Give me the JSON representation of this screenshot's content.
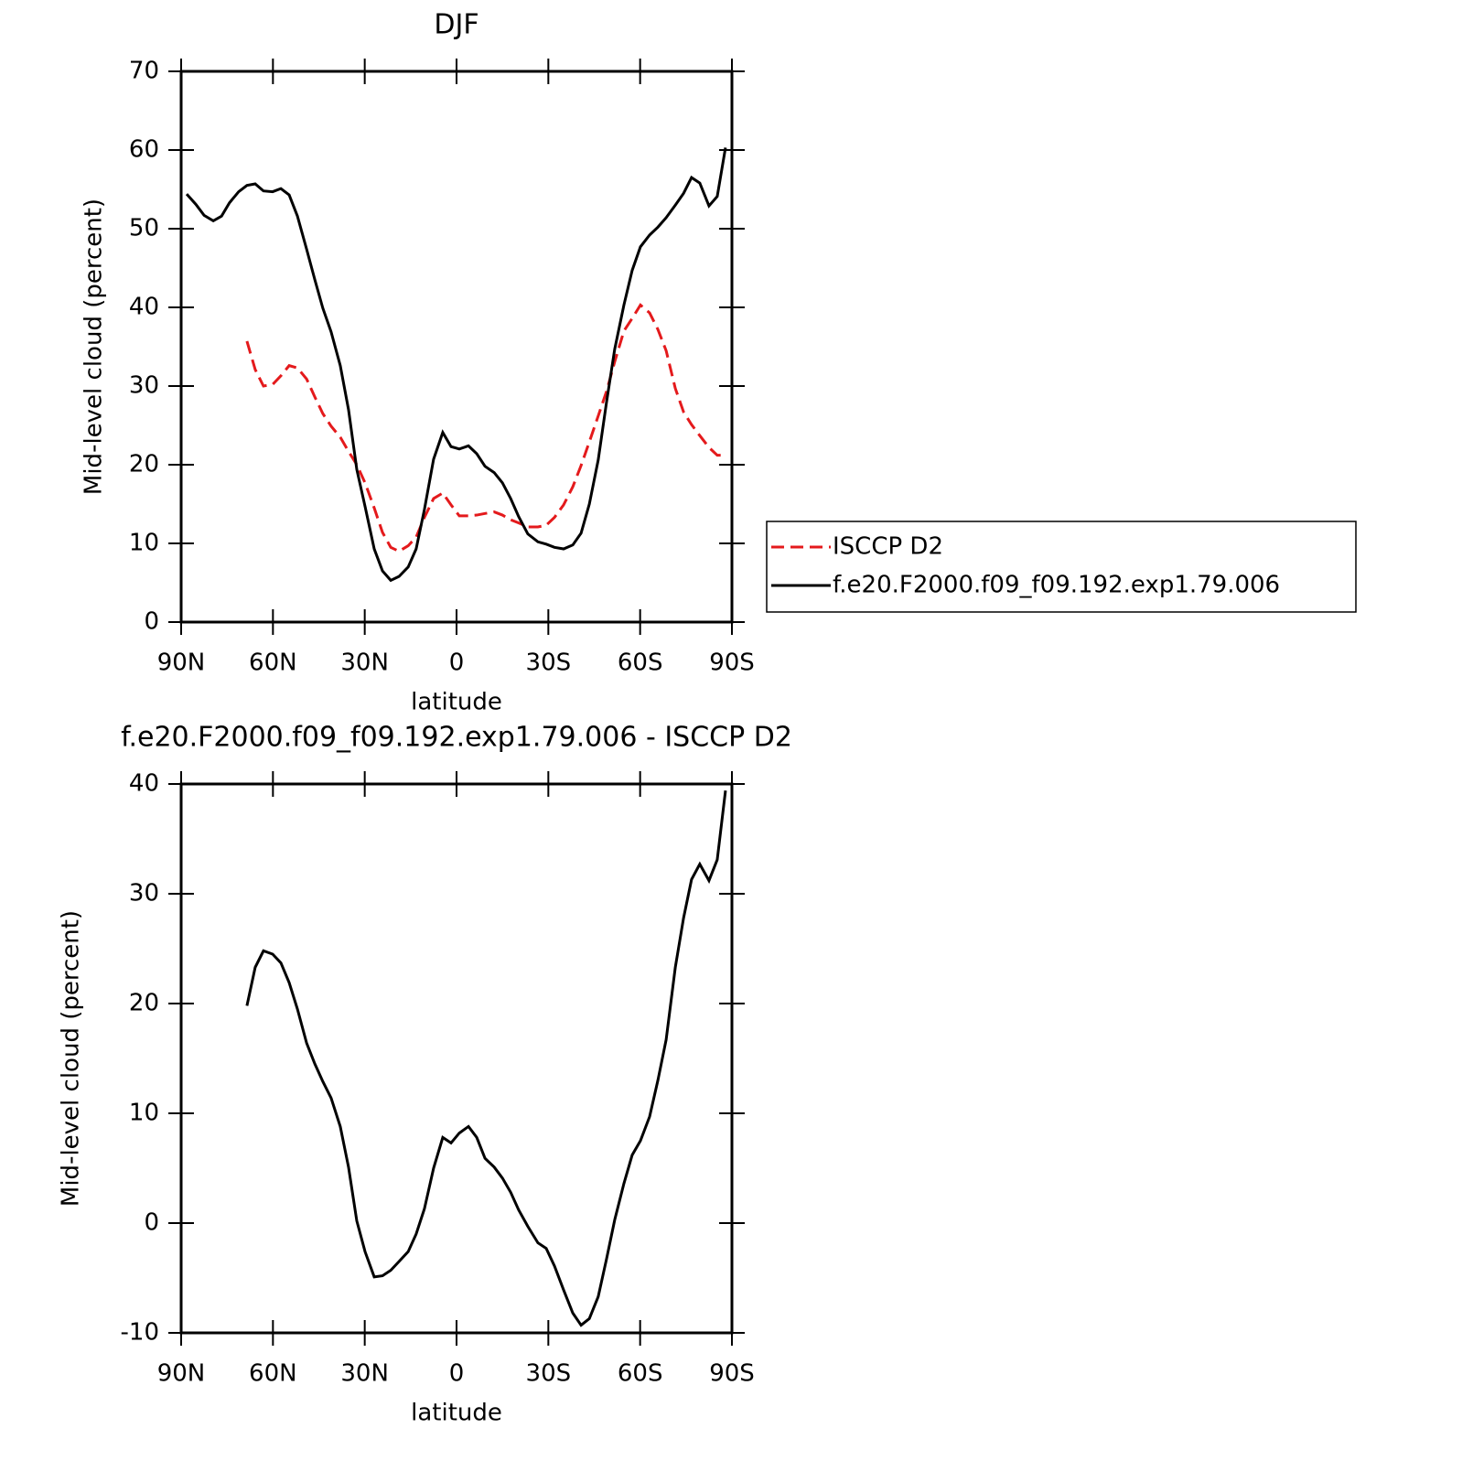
{
  "chart_data": [
    {
      "type": "line",
      "title": "DJF",
      "xlabel": "latitude",
      "ylabel": "Mid-level cloud (percent)",
      "x": [
        88.2,
        85.2,
        82.5,
        79.5,
        76.8,
        74.2,
        71.2,
        68.5,
        65.8,
        63.1,
        60.1,
        57.4,
        54.7,
        52.0,
        49.0,
        46.3,
        43.7,
        41.0,
        38.0,
        35.3,
        32.6,
        29.9,
        26.9,
        24.2,
        21.5,
        18.8,
        15.8,
        13.2,
        10.5,
        7.5,
        4.5,
        1.8,
        -0.9,
        -3.9,
        -6.6,
        -9.3,
        -12.3,
        -15.0,
        -17.7,
        -20.3,
        -23.3,
        -26.6,
        -29.3,
        -32.0,
        -35.0,
        -38.0,
        -40.7,
        -43.4,
        -46.3,
        -49.0,
        -51.7,
        -54.7,
        -57.4,
        -60.1,
        -63.1,
        -65.8,
        -68.5,
        -71.5,
        -74.2,
        -76.8,
        -79.5,
        -82.5,
        -85.2,
        -87.9
      ],
      "series": [
        {
          "name": "ISCCP D2",
          "color": "#e41a1c",
          "linestyle": "dashed",
          "values": [
            null,
            null,
            null,
            null,
            null,
            null,
            null,
            35.7,
            32.1,
            30.0,
            30.2,
            31.3,
            32.6,
            32.3,
            30.9,
            28.6,
            26.5,
            24.9,
            23.5,
            21.7,
            20.0,
            17.7,
            14.5,
            11.4,
            9.5,
            9.0,
            9.7,
            10.8,
            13.3,
            15.7,
            16.4,
            14.9,
            13.5,
            13.5,
            13.6,
            13.8,
            14.0,
            13.6,
            13.0,
            12.6,
            12.1,
            12.1,
            12.3,
            13.3,
            14.9,
            17.2,
            19.9,
            22.9,
            26.2,
            29.3,
            33.1,
            37.0,
            38.6,
            40.3,
            39.3,
            37.2,
            34.5,
            29.7,
            26.7,
            25.1,
            23.7,
            22.2,
            21.2,
            21.2
          ]
        },
        {
          "name": "f.e20.F2000.f09_f09.192.exp1.79.006",
          "color": "#000000",
          "linestyle": "solid",
          "values": [
            54.4,
            53.1,
            51.7,
            51.0,
            51.6,
            53.3,
            54.7,
            55.5,
            55.7,
            54.8,
            54.7,
            55.1,
            54.3,
            51.6,
            47.4,
            43.5,
            39.9,
            36.9,
            32.6,
            27.0,
            19.4,
            14.7,
            9.3,
            6.5,
            5.3,
            5.8,
            7.0,
            9.3,
            14.3,
            20.7,
            24.1,
            22.3,
            22.0,
            22.4,
            21.4,
            19.8,
            19.0,
            17.7,
            15.7,
            13.4,
            11.2,
            10.2,
            9.9,
            9.5,
            9.3,
            9.8,
            11.3,
            15.0,
            20.6,
            27.9,
            34.7,
            40.3,
            44.7,
            47.7,
            49.2,
            50.2,
            51.4,
            53.0,
            54.5,
            56.5,
            55.8,
            52.9,
            54.1,
            60.3
          ]
        }
      ],
      "xlim": [
        90,
        -90
      ],
      "xticks": [
        {
          "value": 90,
          "label": "90N"
        },
        {
          "value": 60,
          "label": "60N"
        },
        {
          "value": 30,
          "label": "30N"
        },
        0,
        {
          "value": -30,
          "label": "30S"
        },
        {
          "value": -60,
          "label": "60S"
        },
        {
          "value": -90,
          "label": "90S"
        }
      ],
      "ylim": [
        0,
        70
      ],
      "yticks": [
        0,
        10,
        20,
        30,
        40,
        50,
        60,
        70
      ],
      "legend": "right"
    },
    {
      "type": "line",
      "title": "f.e20.F2000.f09_f09.192.exp1.79.006 - ISCCP D2",
      "xlabel": "latitude",
      "ylabel": "Mid-level cloud (percent)",
      "x": [
        68.5,
        65.8,
        63.1,
        60.1,
        57.4,
        54.7,
        52.0,
        49.0,
        46.3,
        43.7,
        41.0,
        38.0,
        35.3,
        32.6,
        29.9,
        26.9,
        24.2,
        21.5,
        18.8,
        15.8,
        13.2,
        10.5,
        7.5,
        4.5,
        1.8,
        -0.9,
        -3.9,
        -6.6,
        -9.3,
        -12.3,
        -15.0,
        -17.7,
        -20.3,
        -23.3,
        -26.6,
        -29.3,
        -32.0,
        -35.0,
        -38.0,
        -40.7,
        -43.4,
        -46.3,
        -49.0,
        -51.7,
        -54.7,
        -57.4,
        -60.1,
        -63.1,
        -65.8,
        -68.5,
        -71.5,
        -74.2,
        -76.8,
        -79.5,
        -82.5,
        -85.2,
        -87.9
      ],
      "series": [
        {
          "color": "#000000",
          "linestyle": "solid",
          "values": [
            19.8,
            23.3,
            24.8,
            24.5,
            23.7,
            21.9,
            19.5,
            16.4,
            14.5,
            12.9,
            11.4,
            8.8,
            5.1,
            0.2,
            -2.6,
            -4.9,
            -4.8,
            -4.3,
            -3.5,
            -2.6,
            -1.0,
            1.3,
            5.0,
            7.8,
            7.3,
            8.2,
            8.8,
            7.8,
            5.9,
            5.1,
            4.1,
            2.8,
            1.2,
            -0.3,
            -1.8,
            -2.3,
            -3.9,
            -6.1,
            -8.2,
            -9.3,
            -8.7,
            -6.7,
            -3.3,
            0.3,
            3.6,
            6.2,
            7.5,
            9.7,
            13.0,
            16.7,
            23.3,
            27.8,
            31.3,
            32.7,
            31.2,
            33.1,
            39.4
          ]
        }
      ],
      "xlim": [
        90,
        -90
      ],
      "xticks": [
        {
          "value": 90,
          "label": "90N"
        },
        {
          "value": 60,
          "label": "60N"
        },
        {
          "value": 30,
          "label": "30N"
        },
        0,
        {
          "value": -30,
          "label": "30S"
        },
        {
          "value": -60,
          "label": "60S"
        },
        {
          "value": -90,
          "label": "90S"
        }
      ],
      "ylim": [
        -10,
        40
      ],
      "yticks": [
        -10,
        0,
        10,
        20,
        30,
        40
      ]
    }
  ]
}
